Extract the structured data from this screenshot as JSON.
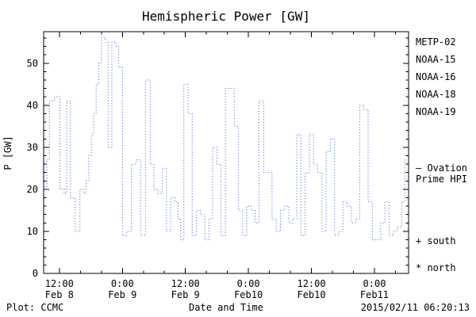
{
  "title": "Hemispheric Power [GW]",
  "footer": {
    "plot_credit": "Plot: CCMC",
    "timestamp": "2015/02/11 06:20:13"
  },
  "legend": {
    "satellites": [
      {
        "label": "METP-02",
        "color": "#4a4a4a"
      },
      {
        "label": "NOAA-15",
        "color": "#3a5fcd"
      },
      {
        "label": "NOAA-16",
        "color": "#00c8d7"
      },
      {
        "label": "NOAA-18",
        "color": "#74d474"
      },
      {
        "label": "NOAA-19",
        "color": "#ffa042"
      }
    ],
    "model": {
      "line1": "– Ovation",
      "line2": "Prime HPI",
      "color": "#3a5fcd"
    },
    "south": "+ south",
    "north": "* north"
  },
  "chart_data": {
    "type": "line",
    "style": "dotted-steps",
    "title": "Hemispheric Power [GW]",
    "xlabel": "Date and Time",
    "ylabel": "P [GW]",
    "line_color": "#3a5fcd",
    "grid": false,
    "legend_position": "right",
    "xlim": [
      9,
      78.5
    ],
    "ylim": [
      0,
      57.5
    ],
    "y_ticks": [
      0,
      10,
      20,
      30,
      40,
      50
    ],
    "x_ticks": [
      {
        "hour": 12,
        "time": "12:00",
        "date": "Feb 8"
      },
      {
        "hour": 24,
        "time": "0:00",
        "date": "Feb 9"
      },
      {
        "hour": 36,
        "time": "12:00",
        "date": "Feb 9"
      },
      {
        "hour": 48,
        "time": "0:00",
        "date": "Feb10"
      },
      {
        "hour": 60,
        "time": "12:00",
        "date": "Feb10"
      },
      {
        "hour": 72,
        "time": "0:00",
        "date": "Feb11"
      }
    ],
    "x_hours": [
      9.0,
      9.6,
      10.1,
      11.1,
      12.1,
      12.9,
      13.4,
      14.1,
      15.0,
      15.9,
      16.6,
      17.1,
      17.6,
      18.1,
      18.5,
      19.0,
      19.5,
      20.0,
      20.8,
      21.3,
      22.0,
      22.8,
      23.3,
      24.0,
      24.8,
      25.7,
      26.6,
      27.5,
      28.4,
      29.3,
      30.0,
      30.8,
      31.6,
      32.4,
      33.2,
      34.0,
      34.6,
      35.1,
      35.7,
      36.5,
      37.3,
      38.1,
      38.9,
      39.7,
      40.5,
      41.2,
      42.0,
      42.8,
      43.6,
      44.5,
      45.3,
      46.1,
      46.9,
      47.7,
      48.5,
      49.3,
      50.0,
      50.9,
      51.7,
      52.5,
      53.3,
      54.1,
      54.9,
      55.7,
      56.4,
      57.2,
      58.0,
      58.8,
      59.6,
      60.4,
      61.2,
      62.0,
      62.8,
      63.6,
      64.4,
      65.2,
      66.0,
      66.8,
      67.6,
      68.4,
      69.2,
      70.0,
      70.8,
      71.6,
      72.4,
      73.2,
      74.0,
      74.8,
      75.6,
      76.4,
      77.2,
      77.8
    ],
    "values": [
      20,
      27,
      41,
      42,
      20,
      19,
      41,
      18,
      10,
      20,
      19,
      22,
      28,
      33,
      38,
      45,
      50,
      56,
      55,
      30,
      55,
      54,
      49,
      9,
      10,
      26,
      27,
      9,
      46,
      26,
      20,
      19,
      25,
      10,
      18,
      17,
      13,
      8,
      45,
      38,
      9,
      15,
      14,
      8,
      13,
      30,
      26,
      9,
      44,
      44,
      35,
      15,
      9,
      16,
      15,
      12,
      41,
      24,
      24,
      13,
      10,
      15,
      16,
      12,
      13,
      33,
      9,
      24,
      33,
      26,
      24,
      10,
      29,
      32,
      9,
      10,
      17,
      16,
      12,
      13,
      40,
      39,
      17,
      8,
      8,
      12,
      17,
      9,
      10,
      11,
      17,
      27
    ]
  }
}
